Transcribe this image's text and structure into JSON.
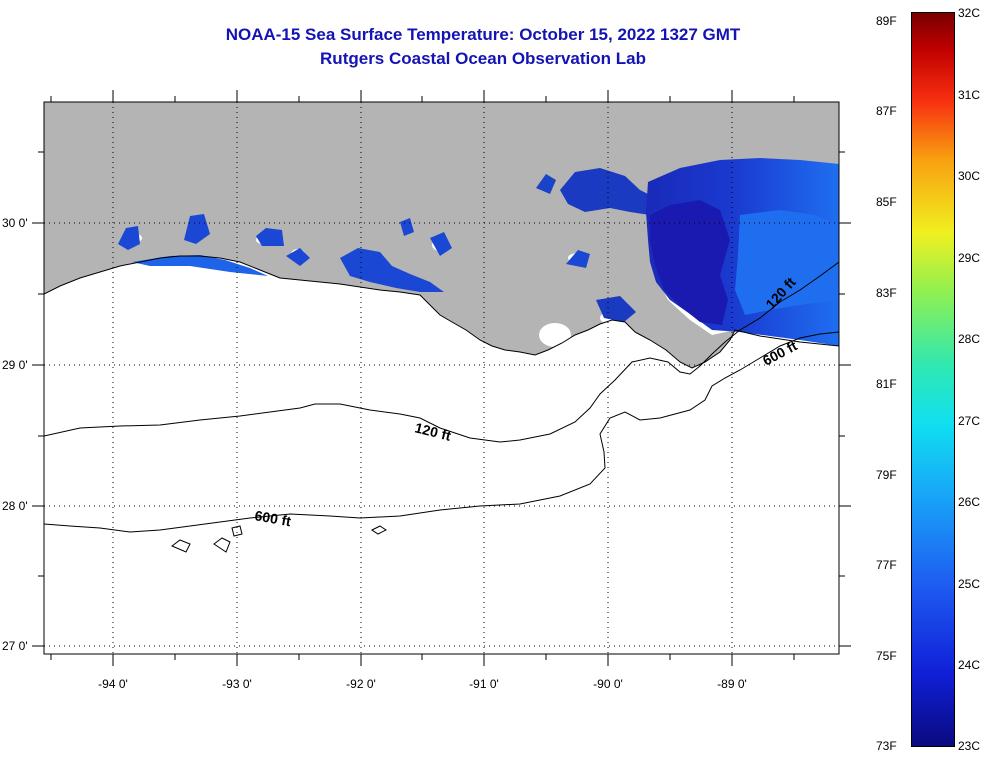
{
  "title": {
    "line1": "NOAA-15 Sea Surface Temperature:  October 15, 2022 1327 GMT",
    "line2": "Rutgers Coastal Ocean Observation Lab"
  },
  "map": {
    "lon_labels": [
      "-94 0'",
      "-93 0'",
      "-92 0'",
      "-91 0'",
      "-90 0'",
      "-89 0'"
    ],
    "lat_labels": [
      "30 0'",
      "29 0'",
      "28 0'",
      "27 0'"
    ],
    "contour_labels": [
      {
        "text": "120 ft"
      },
      {
        "text": "600 ft"
      },
      {
        "text": "120 ft"
      },
      {
        "text": "600 ft"
      }
    ],
    "colors": {
      "land": "#b4b4b4",
      "sst_warm": "#1a6aee",
      "sst_cool": "#1a1ab0",
      "frame": "#000000"
    }
  },
  "colorbar": {
    "fahrenheit": [
      "89F",
      "87F",
      "85F",
      "83F",
      "81F",
      "79F",
      "77F",
      "75F",
      "73F"
    ],
    "celsius": [
      "32C",
      "31C",
      "30C",
      "29C",
      "28C",
      "27C",
      "26C",
      "25C",
      "24C",
      "23C"
    ],
    "range_f": [
      73,
      89
    ],
    "range_c": [
      23,
      32
    ]
  }
}
